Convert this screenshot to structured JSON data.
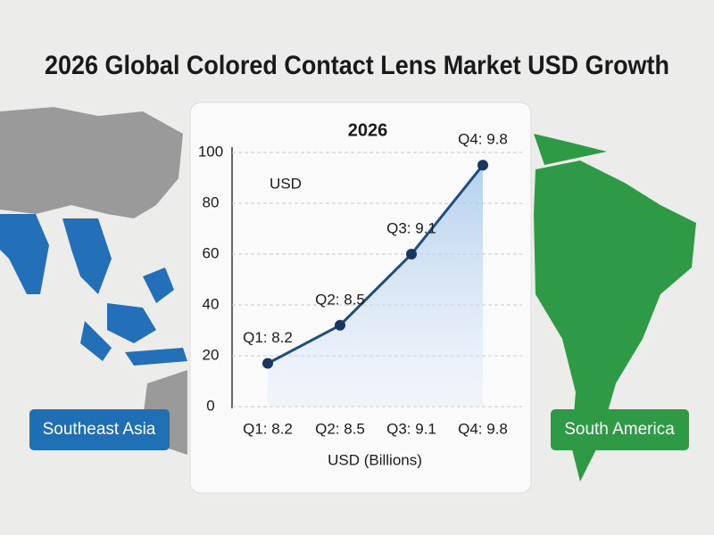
{
  "chart_data": {
    "type": "line",
    "title": "2026 Global Colored Contact Lens Market USD Growth",
    "subtitle": "2026",
    "y_label": "USD",
    "x_label": "USD (Billions)",
    "categories": [
      "Q1: 8.2",
      "Q2: 8.5",
      "Q3: 9.1",
      "Q4: 9.8"
    ],
    "values": [
      17,
      32,
      60,
      95
    ],
    "color": "#1f4e79",
    "ylim": [
      0,
      100
    ],
    "yticks": [
      0,
      20,
      40,
      60,
      80,
      100
    ],
    "grid": true,
    "annotations": [
      "Southeast Asia",
      "South America"
    ]
  }
}
